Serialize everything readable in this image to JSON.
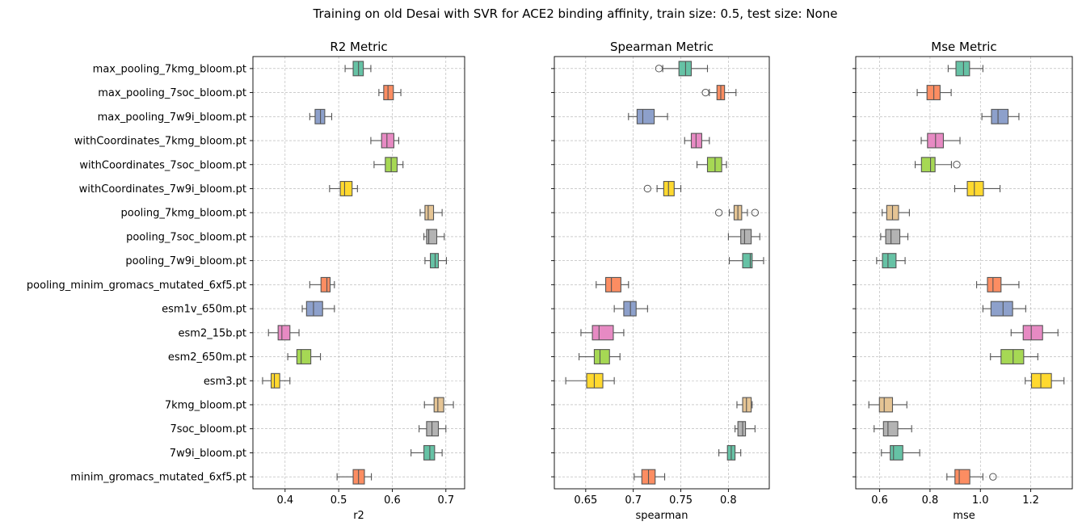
{
  "suptitle": "Training on old Desai with SVR for ACE2 binding affinity, train size: 0.5, test size: None",
  "categories": [
    "max_pooling_7kmg_bloom.pt",
    "max_pooling_7soc_bloom.pt",
    "max_pooling_7w9i_bloom.pt",
    "withCoordinates_7kmg_bloom.pt",
    "withCoordinates_7soc_bloom.pt",
    "withCoordinates_7w9i_bloom.pt",
    "pooling_7kmg_bloom.pt",
    "pooling_7soc_bloom.pt",
    "pooling_7w9i_bloom.pt",
    "pooling_minim_gromacs_mutated_6xf5.pt",
    "esm1v_650m.pt",
    "esm2_15b.pt",
    "esm2_650m.pt",
    "esm3.pt",
    "7kmg_bloom.pt",
    "7soc_bloom.pt",
    "7w9i_bloom.pt",
    "minim_gromacs_mutated_6xf5.pt"
  ],
  "colors": [
    "#66c2a5",
    "#fc8d62",
    "#8da0cb",
    "#e78ac3",
    "#a6d854",
    "#ffd92f",
    "#e5c494",
    "#b3b3b3"
  ],
  "chart_data": [
    {
      "type": "boxplot",
      "title": "R2 Metric",
      "xlabel": "r2",
      "xlim": [
        0.34,
        0.735
      ],
      "xticks": [
        0.4,
        0.5,
        0.6,
        0.7
      ],
      "grid": true,
      "boxes": [
        {
          "whislo": 0.512,
          "q1": 0.527,
          "med": 0.537,
          "q3": 0.546,
          "whishi": 0.56,
          "fliers": []
        },
        {
          "whislo": 0.575,
          "q1": 0.584,
          "med": 0.592,
          "q3": 0.602,
          "whishi": 0.616,
          "fliers": []
        },
        {
          "whislo": 0.446,
          "q1": 0.456,
          "med": 0.466,
          "q3": 0.474,
          "whishi": 0.487,
          "fliers": []
        },
        {
          "whislo": 0.56,
          "q1": 0.58,
          "med": 0.59,
          "q3": 0.603,
          "whishi": 0.612,
          "fliers": []
        },
        {
          "whislo": 0.566,
          "q1": 0.587,
          "med": 0.598,
          "q3": 0.609,
          "whishi": 0.62,
          "fliers": []
        },
        {
          "whislo": 0.483,
          "q1": 0.503,
          "med": 0.511,
          "q3": 0.525,
          "whishi": 0.535,
          "fliers": []
        },
        {
          "whislo": 0.652,
          "q1": 0.661,
          "med": 0.667,
          "q3": 0.677,
          "whishi": 0.693,
          "fliers": []
        },
        {
          "whislo": 0.659,
          "q1": 0.664,
          "med": 0.668,
          "q3": 0.683,
          "whishi": 0.697,
          "fliers": []
        },
        {
          "whislo": 0.661,
          "q1": 0.671,
          "med": 0.68,
          "q3": 0.686,
          "whishi": 0.701,
          "fliers": []
        },
        {
          "whislo": 0.446,
          "q1": 0.467,
          "med": 0.478,
          "q3": 0.484,
          "whishi": 0.492,
          "fliers": []
        },
        {
          "whislo": 0.432,
          "q1": 0.44,
          "med": 0.453,
          "q3": 0.47,
          "whishi": 0.492,
          "fliers": []
        },
        {
          "whislo": 0.369,
          "q1": 0.387,
          "med": 0.394,
          "q3": 0.409,
          "whishi": 0.426,
          "fliers": []
        },
        {
          "whislo": 0.405,
          "q1": 0.422,
          "med": 0.43,
          "q3": 0.448,
          "whishi": 0.466,
          "fliers": []
        },
        {
          "whislo": 0.358,
          "q1": 0.374,
          "med": 0.38,
          "q3": 0.39,
          "whishi": 0.409,
          "fliers": []
        },
        {
          "whislo": 0.66,
          "q1": 0.678,
          "med": 0.685,
          "q3": 0.696,
          "whishi": 0.714,
          "fliers": []
        },
        {
          "whislo": 0.65,
          "q1": 0.664,
          "med": 0.674,
          "q3": 0.686,
          "whishi": 0.7,
          "fliers": []
        },
        {
          "whislo": 0.635,
          "q1": 0.659,
          "med": 0.67,
          "q3": 0.679,
          "whishi": 0.693,
          "fliers": []
        },
        {
          "whislo": 0.497,
          "q1": 0.527,
          "med": 0.537,
          "q3": 0.548,
          "whishi": 0.561,
          "fliers": []
        }
      ]
    },
    {
      "type": "boxplot",
      "title": "Spearman Metric",
      "xlabel": "spearman",
      "xlim": [
        0.617,
        0.843
      ],
      "xticks": [
        0.65,
        0.7,
        0.75,
        0.8
      ],
      "grid": true,
      "boxes": [
        {
          "whislo": 0.731,
          "q1": 0.748,
          "med": 0.755,
          "q3": 0.761,
          "whishi": 0.778,
          "fliers": [
            0.727
          ]
        },
        {
          "whislo": 0.78,
          "q1": 0.788,
          "med": 0.792,
          "q3": 0.796,
          "whishi": 0.808,
          "fliers": [
            0.776
          ]
        },
        {
          "whislo": 0.695,
          "q1": 0.704,
          "med": 0.71,
          "q3": 0.722,
          "whishi": 0.736,
          "fliers": []
        },
        {
          "whislo": 0.754,
          "q1": 0.761,
          "med": 0.766,
          "q3": 0.772,
          "whishi": 0.78,
          "fliers": []
        },
        {
          "whislo": 0.767,
          "q1": 0.778,
          "med": 0.786,
          "q3": 0.793,
          "whishi": 0.798,
          "fliers": []
        },
        {
          "whislo": 0.725,
          "q1": 0.732,
          "med": 0.737,
          "q3": 0.743,
          "whishi": 0.75,
          "fliers": [
            0.715
          ]
        },
        {
          "whislo": 0.801,
          "q1": 0.806,
          "med": 0.81,
          "q3": 0.814,
          "whishi": 0.82,
          "fliers": [
            0.79,
            0.828
          ]
        },
        {
          "whislo": 0.8,
          "q1": 0.813,
          "med": 0.817,
          "q3": 0.824,
          "whishi": 0.833,
          "fliers": []
        },
        {
          "whislo": 0.801,
          "q1": 0.815,
          "med": 0.823,
          "q3": 0.825,
          "whishi": 0.837,
          "fliers": []
        },
        {
          "whislo": 0.661,
          "q1": 0.671,
          "med": 0.677,
          "q3": 0.687,
          "whishi": 0.695,
          "fliers": []
        },
        {
          "whislo": 0.68,
          "q1": 0.69,
          "med": 0.697,
          "q3": 0.703,
          "whishi": 0.715,
          "fliers": []
        },
        {
          "whislo": 0.645,
          "q1": 0.657,
          "med": 0.664,
          "q3": 0.679,
          "whishi": 0.69,
          "fliers": []
        },
        {
          "whislo": 0.643,
          "q1": 0.659,
          "med": 0.665,
          "q3": 0.675,
          "whishi": 0.686,
          "fliers": []
        },
        {
          "whislo": 0.629,
          "q1": 0.651,
          "med": 0.659,
          "q3": 0.668,
          "whishi": 0.68,
          "fliers": []
        },
        {
          "whislo": 0.809,
          "q1": 0.815,
          "med": 0.819,
          "q3": 0.824,
          "whishi": 0.825,
          "fliers": []
        },
        {
          "whislo": 0.807,
          "q1": 0.81,
          "med": 0.815,
          "q3": 0.818,
          "whishi": 0.828,
          "fliers": []
        },
        {
          "whislo": 0.79,
          "q1": 0.799,
          "med": 0.803,
          "q3": 0.807,
          "whishi": 0.813,
          "fliers": []
        },
        {
          "whislo": 0.701,
          "q1": 0.709,
          "med": 0.716,
          "q3": 0.723,
          "whishi": 0.733,
          "fliers": []
        }
      ]
    },
    {
      "type": "boxplot",
      "title": "Mse Metric",
      "xlabel": "mse",
      "xlim": [
        0.505,
        1.365
      ],
      "xticks": [
        0.6,
        0.8,
        1.0,
        1.2
      ],
      "xticklabels": [
        "0.6",
        "0.8",
        "1.0",
        "1.2"
      ],
      "grid": true,
      "boxes": [
        {
          "whislo": 0.872,
          "q1": 0.903,
          "med": 0.933,
          "q3": 0.957,
          "whishi": 1.01,
          "fliers": []
        },
        {
          "whislo": 0.749,
          "q1": 0.788,
          "med": 0.815,
          "q3": 0.84,
          "whishi": 0.884,
          "fliers": []
        },
        {
          "whislo": 1.006,
          "q1": 1.044,
          "med": 1.07,
          "q3": 1.11,
          "whishi": 1.153,
          "fliers": []
        },
        {
          "whislo": 0.765,
          "q1": 0.79,
          "med": 0.822,
          "q3": 0.853,
          "whishi": 0.919,
          "fliers": []
        },
        {
          "whislo": 0.741,
          "q1": 0.766,
          "med": 0.802,
          "q3": 0.82,
          "whishi": 0.885,
          "fliers": [
            0.906
          ]
        },
        {
          "whislo": 0.898,
          "q1": 0.948,
          "med": 0.976,
          "q3": 1.012,
          "whishi": 1.078,
          "fliers": []
        },
        {
          "whislo": 0.61,
          "q1": 0.628,
          "med": 0.651,
          "q3": 0.675,
          "whishi": 0.718,
          "fliers": []
        },
        {
          "whislo": 0.604,
          "q1": 0.624,
          "med": 0.645,
          "q3": 0.68,
          "whishi": 0.712,
          "fliers": []
        },
        {
          "whislo": 0.588,
          "q1": 0.611,
          "med": 0.633,
          "q3": 0.665,
          "whishi": 0.701,
          "fliers": []
        },
        {
          "whislo": 0.985,
          "q1": 1.028,
          "med": 1.05,
          "q3": 1.082,
          "whishi": 1.153,
          "fliers": []
        },
        {
          "whislo": 1.01,
          "q1": 1.042,
          "med": 1.09,
          "q3": 1.128,
          "whishi": 1.18,
          "fliers": []
        },
        {
          "whislo": 1.122,
          "q1": 1.17,
          "med": 1.202,
          "q3": 1.247,
          "whishi": 1.308,
          "fliers": []
        },
        {
          "whislo": 1.04,
          "q1": 1.082,
          "med": 1.13,
          "q3": 1.172,
          "whishi": 1.228,
          "fliers": []
        },
        {
          "whislo": 1.178,
          "q1": 1.203,
          "med": 1.24,
          "q3": 1.282,
          "whishi": 1.332,
          "fliers": []
        },
        {
          "whislo": 0.557,
          "q1": 0.599,
          "med": 0.618,
          "q3": 0.651,
          "whishi": 0.708,
          "fliers": []
        },
        {
          "whislo": 0.578,
          "q1": 0.615,
          "med": 0.633,
          "q3": 0.672,
          "whishi": 0.727,
          "fliers": []
        },
        {
          "whislo": 0.607,
          "q1": 0.642,
          "med": 0.655,
          "q3": 0.692,
          "whishi": 0.759,
          "fliers": []
        },
        {
          "whislo": 0.867,
          "q1": 0.899,
          "med": 0.916,
          "q3": 0.958,
          "whishi": 1.01,
          "fliers": [
            1.05
          ]
        }
      ]
    }
  ]
}
